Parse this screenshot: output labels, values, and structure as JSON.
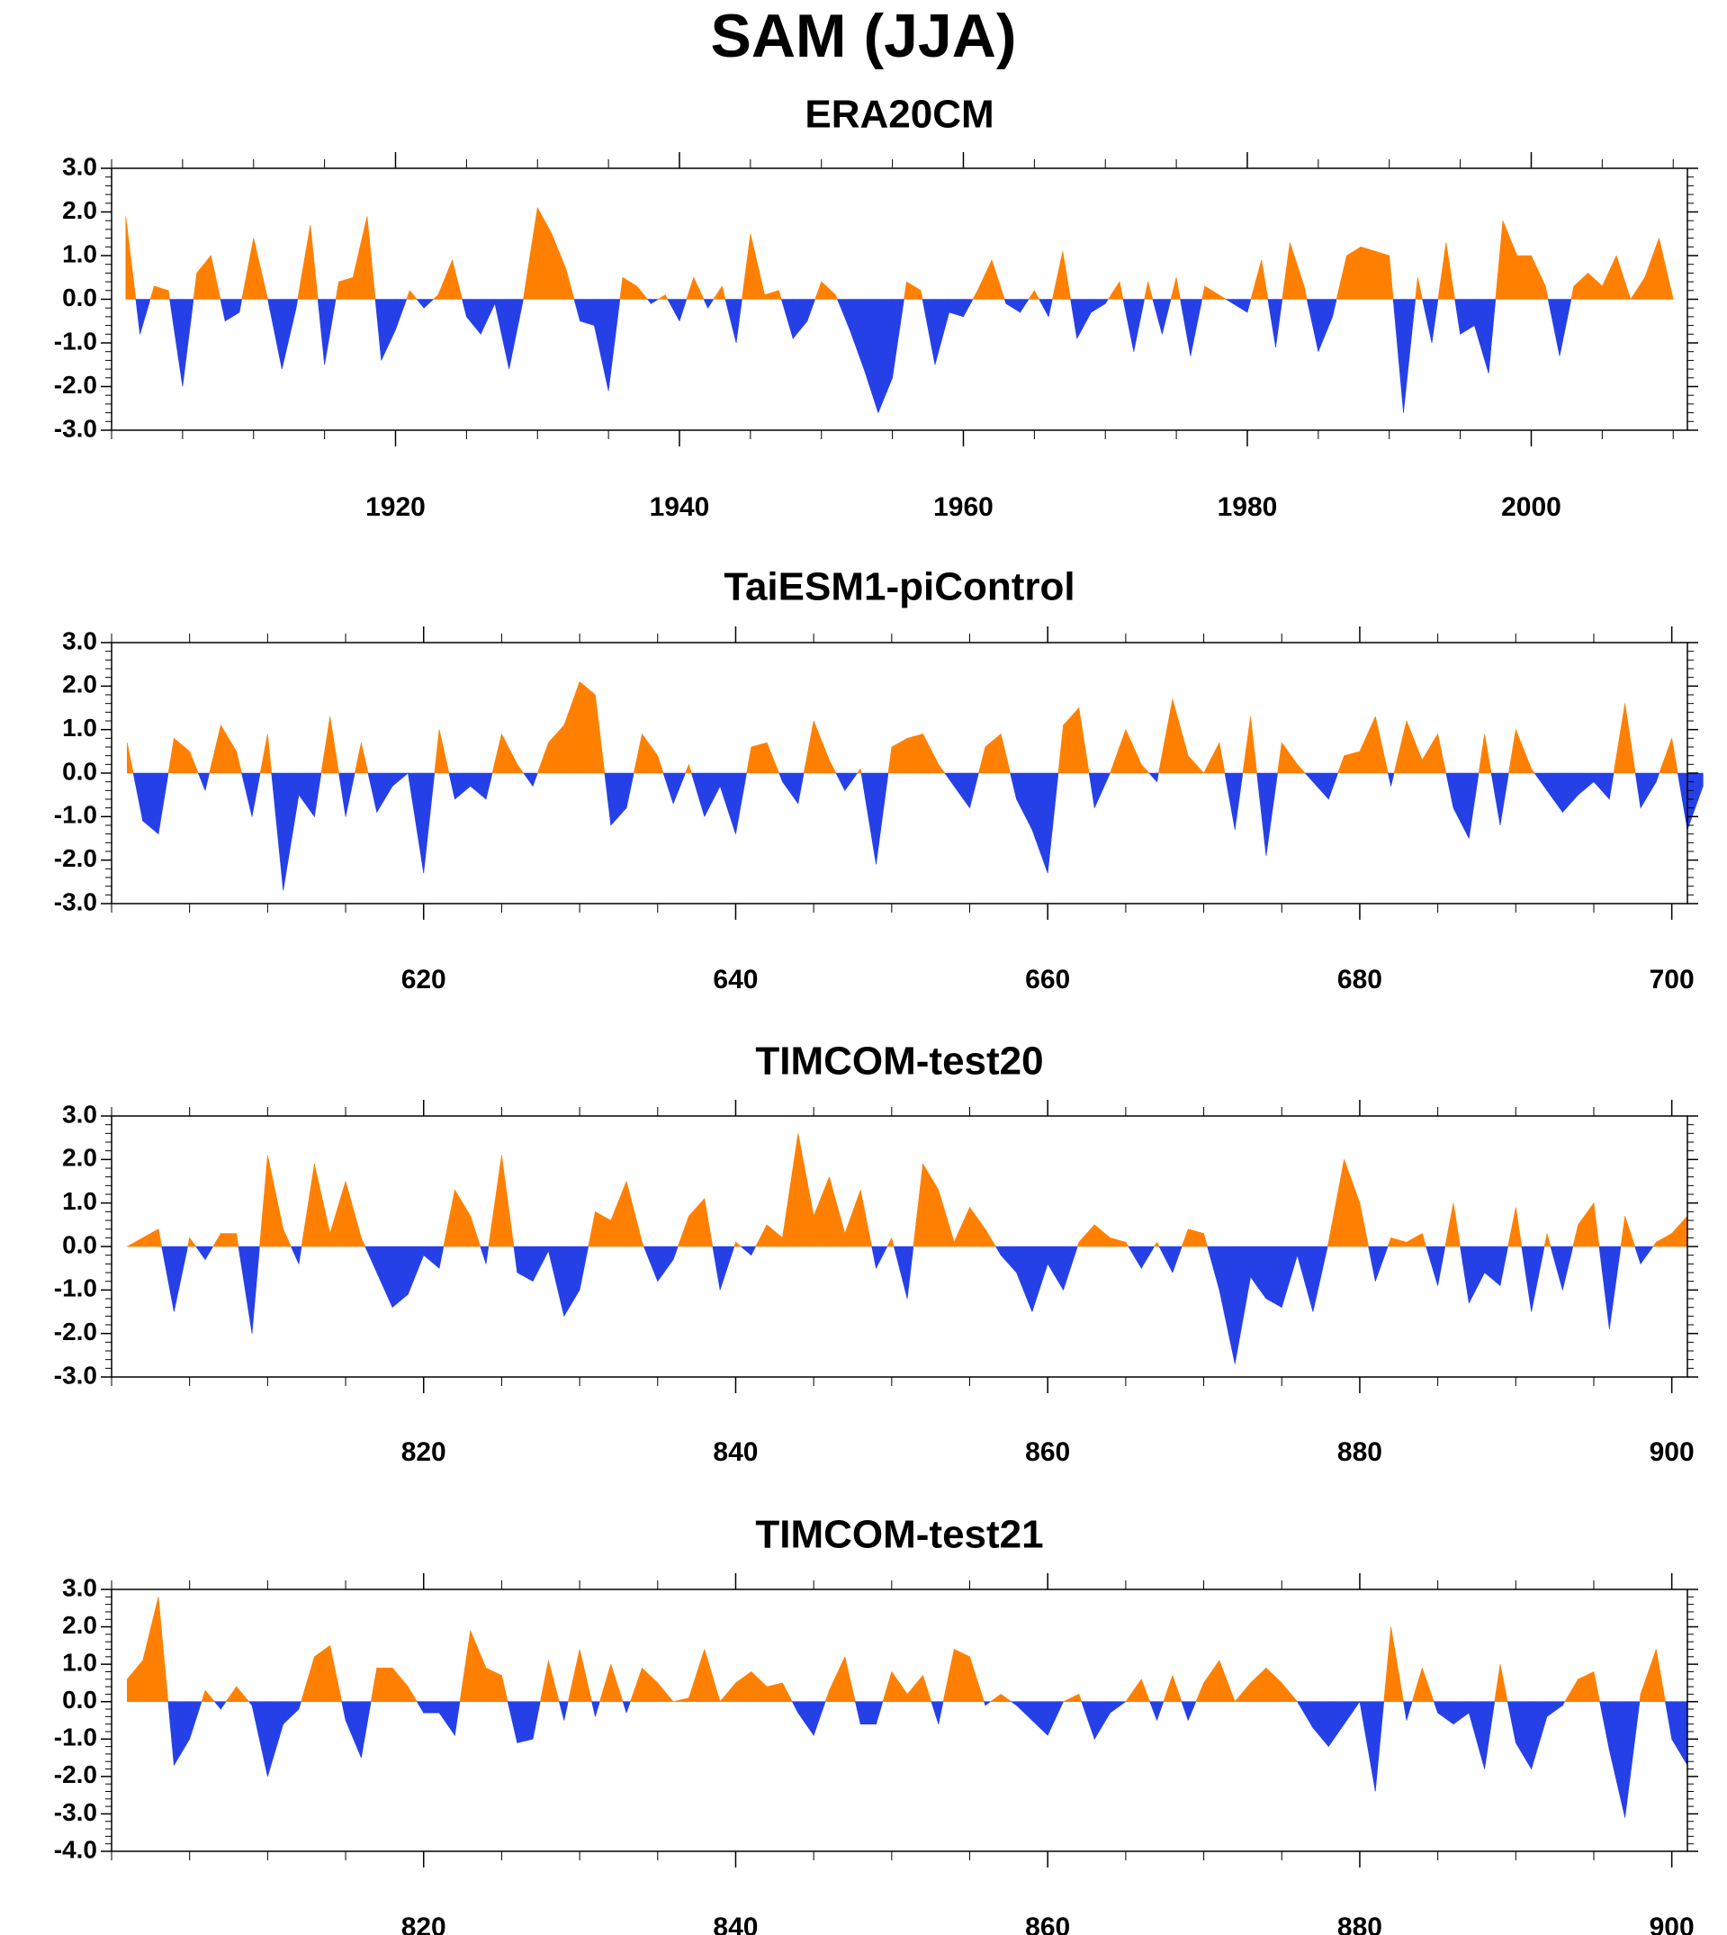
{
  "title": "SAM (JJA)",
  "colors": {
    "positive": "#ff8000",
    "negative": "#2640e8",
    "axis": "#000000"
  },
  "chart_data": [
    {
      "type": "area",
      "title": "ERA20CM",
      "xlim": [
        1901,
        2010
      ],
      "ylim": [
        -3.0,
        3.0
      ],
      "ytick_step": 1.0,
      "ytick_labels": [
        "3.0",
        "2.0",
        "1.0",
        "0.0",
        "-1.0",
        "-2.0",
        "-3.0"
      ],
      "xticks": [
        1920,
        1940,
        1960,
        1980,
        2000
      ],
      "xtick_labels": [
        "1920",
        "1940",
        "1960",
        "1980",
        "2000"
      ],
      "x_start": 1901,
      "values": [
        1.9,
        -0.8,
        0.3,
        0.2,
        -2.0,
        0.6,
        1.0,
        -0.5,
        -0.3,
        1.4,
        0.0,
        -1.6,
        -0.2,
        1.7,
        -1.5,
        0.4,
        0.5,
        1.9,
        -1.4,
        -0.7,
        0.2,
        -0.2,
        0.1,
        0.9,
        -0.4,
        -0.8,
        -0.1,
        -1.6,
        0.0,
        2.1,
        1.5,
        0.7,
        -0.5,
        -0.6,
        -2.1,
        0.5,
        0.3,
        -0.1,
        0.1,
        -0.5,
        0.5,
        -0.2,
        0.3,
        -1.0,
        1.5,
        0.1,
        0.2,
        -0.9,
        -0.5,
        0.4,
        0.1,
        -0.7,
        -1.6,
        -2.6,
        -1.8,
        0.4,
        0.2,
        -1.5,
        -0.3,
        -0.4,
        0.2,
        0.9,
        -0.1,
        -0.3,
        0.2,
        -0.4,
        1.1,
        -0.9,
        -0.3,
        -0.1,
        0.4,
        -1.2,
        0.4,
        -0.8,
        0.5,
        -1.3,
        0.3,
        0.1,
        -0.1,
        -0.3,
        0.9,
        -1.1,
        1.3,
        0.3,
        -1.2,
        -0.4,
        1.0,
        1.2,
        1.1,
        1.0,
        -2.6,
        0.5,
        -1.0,
        1.3,
        -0.8,
        -0.6,
        -1.7,
        1.8,
        1.0,
        1.0,
        0.3,
        -1.3,
        0.3,
        0.6,
        0.3,
        1.0,
        0.0,
        0.5,
        1.4,
        0.0
      ]
    },
    {
      "type": "area",
      "title": "TaiESM1-piControl",
      "xlim": [
        601,
        700
      ],
      "ylim": [
        -3.0,
        3.0
      ],
      "ytick_step": 1.0,
      "ytick_labels": [
        "3.0",
        "2.0",
        "1.0",
        "0.0",
        "-1.0",
        "-2.0",
        "-3.0"
      ],
      "xticks": [
        620,
        640,
        660,
        680,
        700
      ],
      "xtick_labels": [
        "620",
        "640",
        "660",
        "680",
        "700"
      ],
      "x_start": 601,
      "values": [
        0.7,
        -1.1,
        -1.4,
        0.8,
        0.5,
        -0.4,
        1.1,
        0.5,
        -1.0,
        0.9,
        -2.7,
        -0.5,
        -1.0,
        1.3,
        -1.0,
        0.7,
        -0.9,
        -0.3,
        0.0,
        -2.3,
        1.0,
        -0.6,
        -0.3,
        -0.6,
        0.9,
        0.2,
        -0.3,
        0.7,
        1.1,
        2.1,
        1.8,
        -1.2,
        -0.8,
        0.9,
        0.4,
        -0.7,
        0.2,
        -1.0,
        -0.3,
        -1.4,
        0.6,
        0.7,
        -0.2,
        -0.7,
        1.2,
        0.3,
        -0.4,
        0.1,
        -2.1,
        0.6,
        0.8,
        0.9,
        0.2,
        -0.3,
        -0.8,
        0.6,
        0.9,
        -0.6,
        -1.3,
        -2.3,
        1.1,
        1.5,
        -0.8,
        0.0,
        1.0,
        0.2,
        -0.2,
        1.7,
        0.4,
        0.0,
        0.7,
        -1.3,
        1.3,
        -1.9,
        0.7,
        0.2,
        -0.2,
        -0.6,
        0.4,
        0.5,
        1.3,
        -0.3,
        1.2,
        0.3,
        0.9,
        -0.8,
        -1.5,
        0.9,
        -1.2,
        1.0,
        0.1,
        -0.4,
        -0.9,
        -0.5,
        -0.2,
        -0.6,
        1.6,
        -0.8,
        -0.2,
        0.8,
        -1.3,
        -0.3
      ]
    },
    {
      "type": "area",
      "title": "TIMCOM-test20",
      "xlim": [
        801,
        900
      ],
      "ylim": [
        -3.0,
        3.0
      ],
      "ytick_step": 1.0,
      "ytick_labels": [
        "3.0",
        "2.0",
        "1.0",
        "0.0",
        "-1.0",
        "-2.0",
        "-3.0"
      ],
      "xticks": [
        820,
        840,
        860,
        880,
        900
      ],
      "xtick_labels": [
        "820",
        "840",
        "860",
        "880",
        "900"
      ],
      "x_start": 801,
      "values": [
        0.0,
        0.2,
        0.4,
        -1.5,
        0.2,
        -0.3,
        0.3,
        0.3,
        -2.0,
        2.1,
        0.4,
        -0.4,
        1.9,
        0.3,
        1.5,
        0.2,
        -0.6,
        -1.4,
        -1.1,
        -0.2,
        -0.5,
        1.3,
        0.7,
        -0.4,
        2.1,
        -0.6,
        -0.8,
        -0.1,
        -1.6,
        -1.0,
        0.8,
        0.6,
        1.5,
        0.1,
        -0.8,
        -0.3,
        0.7,
        1.1,
        -1.0,
        0.1,
        -0.2,
        0.5,
        0.2,
        2.6,
        0.7,
        1.6,
        0.3,
        1.3,
        -0.5,
        0.2,
        -1.2,
        1.9,
        1.3,
        0.1,
        0.9,
        0.4,
        -0.2,
        -0.6,
        -1.5,
        -0.4,
        -1.0,
        0.1,
        0.5,
        0.2,
        0.1,
        -0.5,
        0.1,
        -0.6,
        0.4,
        0.3,
        -1.0,
        -2.7,
        -0.7,
        -1.2,
        -1.4,
        -0.2,
        -1.5,
        0.1,
        2.0,
        1.0,
        -0.8,
        0.2,
        0.1,
        0.3,
        -0.9,
        1.0,
        -1.3,
        -0.6,
        -0.9,
        0.9,
        -1.5,
        0.3,
        -1.0,
        0.5,
        1.0,
        -1.9,
        0.7,
        -0.4,
        0.1,
        0.3,
        0.7
      ]
    },
    {
      "type": "area",
      "title": "TIMCOM-test21",
      "xlim": [
        801,
        900
      ],
      "ylim": [
        -4.0,
        3.0
      ],
      "ytick_step": 1.0,
      "ytick_labels": [
        "3.0",
        "2.0",
        "1.0",
        "0.0",
        "-1.0",
        "-2.0",
        "-3.0",
        "-4.0"
      ],
      "xticks": [
        820,
        840,
        860,
        880,
        900
      ],
      "xtick_labels": [
        "820",
        "840",
        "860",
        "880",
        "900"
      ],
      "x_start": 801,
      "values": [
        0.6,
        1.1,
        2.8,
        -1.7,
        -1.0,
        0.3,
        -0.2,
        0.4,
        -0.1,
        -2.0,
        -0.6,
        -0.2,
        1.2,
        1.5,
        -0.5,
        -1.5,
        0.9,
        0.9,
        0.4,
        -0.3,
        -0.3,
        -0.9,
        1.9,
        0.9,
        0.7,
        -1.1,
        -1.0,
        1.1,
        -0.5,
        1.4,
        -0.4,
        1.0,
        -0.3,
        0.9,
        0.5,
        0.0,
        0.1,
        1.4,
        0.0,
        0.5,
        0.8,
        0.4,
        0.5,
        -0.3,
        -0.9,
        0.3,
        1.2,
        -0.6,
        -0.6,
        0.8,
        0.2,
        0.7,
        -0.6,
        1.4,
        1.2,
        -0.1,
        0.2,
        -0.1,
        -0.5,
        -0.9,
        0.0,
        0.2,
        -1.0,
        -0.3,
        0.0,
        0.6,
        -0.5,
        0.7,
        -0.5,
        0.5,
        1.1,
        0.0,
        0.5,
        0.9,
        0.5,
        0.0,
        -0.7,
        -1.2,
        -0.6,
        0.0,
        -2.4,
        2.0,
        -0.5,
        0.9,
        -0.3,
        -0.6,
        -0.3,
        -1.8,
        1.0,
        -1.1,
        -1.8,
        -0.4,
        -0.1,
        0.6,
        0.8,
        -1.3,
        -3.1,
        0.2,
        1.4,
        -1.0,
        -1.7
      ]
    }
  ]
}
